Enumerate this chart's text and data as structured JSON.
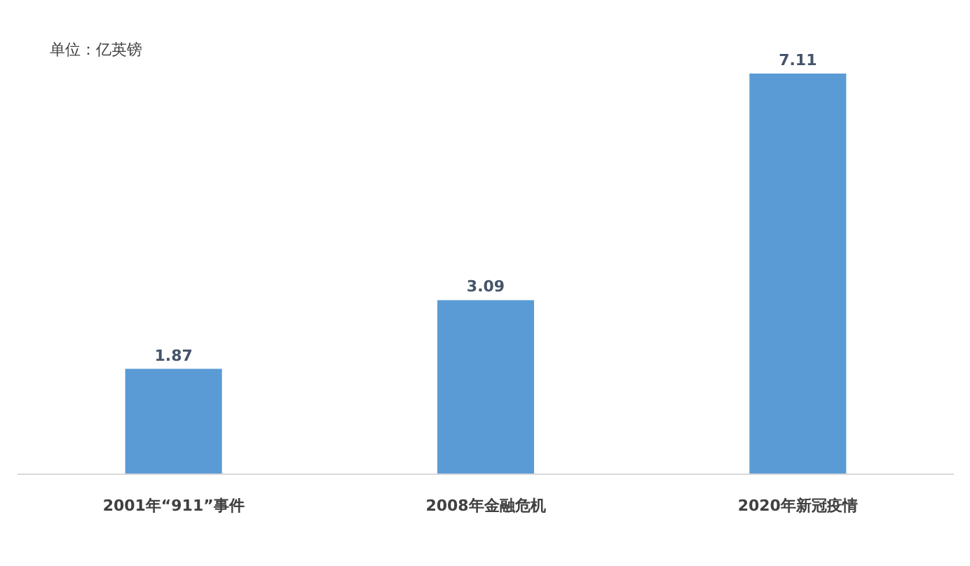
{
  "chart_data": {
    "type": "bar",
    "ylabel": "单位：亿英镑",
    "categories": [
      "2001年“911”事件",
      "2008年金融危机",
      "2020年新冠疫情"
    ],
    "values": [
      1.87,
      3.09,
      7.11
    ],
    "color": "#5b9bd5",
    "data_labels": true,
    "tick_labels": "x",
    "grid": false
  }
}
